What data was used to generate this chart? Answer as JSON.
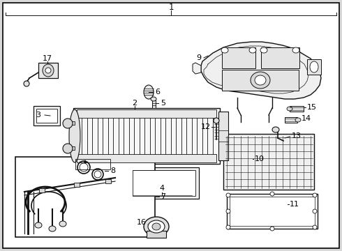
{
  "bg_color": "#d8d8d8",
  "border_color": "#000000",
  "line_color": "#111111",
  "figsize": [
    4.9,
    3.6
  ],
  "dpi": 100,
  "white": "#ffffff",
  "light_gray": "#f0f0f0"
}
